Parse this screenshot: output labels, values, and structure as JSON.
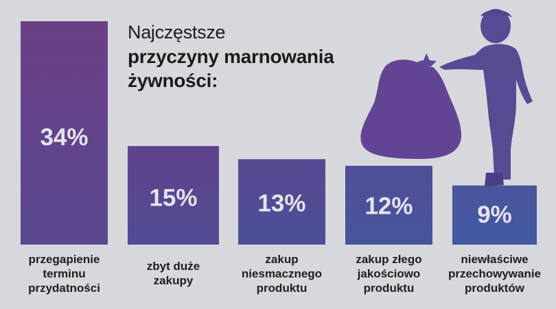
{
  "title": {
    "line1": "Najczęstsze",
    "line2": "przyczyny marnowania",
    "line3": "żywności:"
  },
  "chart_data": {
    "type": "bar",
    "title": "Najczęstsze przyczyny marnowania żywności:",
    "categories": [
      [
        "przegapienie",
        "terminu",
        "przydatności"
      ],
      [
        "zbyt duże",
        "zakupy"
      ],
      [
        "zakup",
        "niesmacznego",
        "produktu"
      ],
      [
        "zakup złego",
        "jakościowo",
        "produktu"
      ],
      [
        "niewłaściwe",
        "przechowywanie",
        "produktów"
      ]
    ],
    "values": [
      34,
      15,
      13,
      12,
      9
    ],
    "value_labels": [
      "34%",
      "15%",
      "13%",
      "12%",
      "9%"
    ],
    "unit": "%",
    "bar_colors_top": [
      "#6b3f86",
      "#60438c",
      "#584891",
      "#514e96",
      "#4a559c"
    ],
    "bar_colors_bottom": [
      "#5a4990",
      "#514c94",
      "#4b5098",
      "#46559c",
      "#4159a2"
    ],
    "grid": false,
    "legend": "none"
  },
  "illustration": {
    "icon": "person-with-garbage-bag-icon",
    "color": "#5b4b93"
  }
}
